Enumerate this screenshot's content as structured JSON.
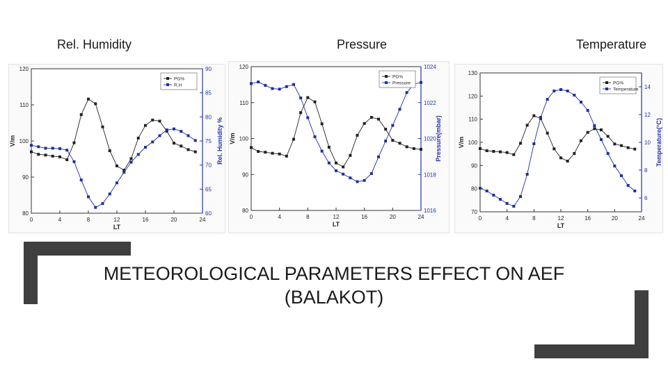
{
  "panel_headings": [
    "Rel. Humidity",
    "Pressure",
    "Temperature"
  ],
  "slide_title_line1": "METEOROLOGICAL PARAMETERS EFFECT ON AEF",
  "slide_title_line2": "(BALAKOT)",
  "colors": {
    "pg_series": "#222222",
    "param_series": "#1f2fa0",
    "param_axis": "#2233aa",
    "bracket": "#3f3f3f"
  },
  "chart_data": [
    {
      "type": "line",
      "xlabel": "LT",
      "ylabel": "V/m",
      "y2label": "Rel. Humidity %",
      "xlim": [
        0,
        24
      ],
      "xticks": [
        0,
        4,
        8,
        12,
        16,
        20,
        24
      ],
      "ylim": [
        80,
        120
      ],
      "yticks": [
        80,
        90,
        100,
        110,
        120
      ],
      "y2lim": [
        60,
        90
      ],
      "y2ticks": [
        60,
        65,
        70,
        75,
        80,
        85,
        90
      ],
      "legend_position": "top-right",
      "x": [
        0,
        1,
        2,
        3,
        4,
        5,
        6,
        7,
        8,
        9,
        10,
        11,
        12,
        13,
        14,
        15,
        16,
        17,
        18,
        19,
        20,
        21,
        22,
        23
      ],
      "series": [
        {
          "name": "PG%",
          "axis": "left",
          "values": [
            97,
            96.3,
            96.1,
            95.8,
            95.6,
            94.8,
            99.5,
            107.3,
            111.6,
            110.3,
            103.9,
            97.3,
            93.1,
            91.9,
            95.1,
            100.8,
            104.3,
            105.8,
            105.5,
            102.7,
            99.4,
            98.6,
            97.6,
            97
          ]
        },
        {
          "name": "R.H",
          "axis": "right",
          "values": [
            74.1,
            73.8,
            73.5,
            73.5,
            73.4,
            73.1,
            70.7,
            66.9,
            63.4,
            61.2,
            62,
            64,
            66.3,
            68.5,
            70.6,
            72.2,
            73.7,
            74.8,
            76.1,
            77.3,
            77.5,
            77,
            76.1,
            75.1
          ]
        }
      ]
    },
    {
      "type": "line",
      "xlabel": "LT",
      "ylabel": "V/m",
      "y2label": "Pressure(mbar)",
      "xlim": [
        0,
        24
      ],
      "xticks": [
        0,
        4,
        8,
        12,
        16,
        20,
        24
      ],
      "ylim": [
        80,
        120
      ],
      "yticks": [
        80,
        90,
        100,
        110,
        120
      ],
      "y2lim": [
        1016,
        1024
      ],
      "y2ticks": [
        1016,
        1018,
        1020,
        1022,
        1024
      ],
      "y2ticklabels": [
        "1016",
        "1018",
        "1020",
        "1022",
        "1024"
      ],
      "legend_position": "top-right",
      "x": [
        0,
        1,
        2,
        3,
        4,
        5,
        6,
        7,
        8,
        9,
        10,
        11,
        12,
        13,
        14,
        15,
        16,
        17,
        18,
        19,
        20,
        21,
        22,
        23,
        24
      ],
      "series": [
        {
          "name": "PG%",
          "axis": "left",
          "values": [
            97.5,
            96.4,
            96.2,
            95.9,
            95.7,
            95.1,
            99.8,
            107.2,
            111.4,
            110.2,
            104.1,
            97.6,
            93.2,
            92.1,
            95.3,
            100.9,
            104.2,
            105.9,
            105.4,
            102.6,
            99.5,
            98.7,
            97.7,
            97.2,
            97
          ]
        },
        {
          "name": "Pressure",
          "axis": "right",
          "values": [
            1023.06,
            1023.15,
            1022.96,
            1022.78,
            1022.75,
            1022.89,
            1023.01,
            1022.26,
            1021.16,
            1020.1,
            1019.3,
            1018.64,
            1018.21,
            1018.02,
            1017.81,
            1017.6,
            1017.67,
            1018.05,
            1018.98,
            1019.86,
            1020.73,
            1021.63,
            1022.56,
            1023.03,
            1023.12
          ]
        }
      ]
    },
    {
      "type": "line",
      "xlabel": "LT",
      "ylabel": "V/m",
      "y2label": "Temperature(°C)",
      "xlim": [
        0,
        24
      ],
      "xticks": [
        0,
        4,
        8,
        12,
        16,
        20,
        24
      ],
      "ylim": [
        70,
        130
      ],
      "yticks": [
        70,
        80,
        90,
        100,
        110,
        120,
        130
      ],
      "y2lim": [
        5,
        15
      ],
      "y2ticks": [
        6,
        8,
        10,
        12,
        14
      ],
      "legend_position": "top-right",
      "x": [
        0,
        1,
        2,
        3,
        4,
        5,
        6,
        7,
        8,
        9,
        10,
        11,
        12,
        13,
        14,
        15,
        16,
        17,
        18,
        19,
        20,
        21,
        22,
        23
      ],
      "series": [
        {
          "name": "PG%",
          "axis": "left",
          "values": [
            97.3,
            96.4,
            96.1,
            95.9,
            95.6,
            94.7,
            99.6,
            107.4,
            111.5,
            110.3,
            104,
            97.2,
            93.3,
            91.9,
            95.2,
            100.7,
            104.3,
            105.9,
            105.4,
            102.6,
            99.3,
            98.6,
            97.7,
            97.1
          ]
        },
        {
          "name": "Temperature",
          "axis": "right",
          "values": [
            6.7,
            6.5,
            6.2,
            5.9,
            5.6,
            5.4,
            6.1,
            7.7,
            9.9,
            11.8,
            13.1,
            13.7,
            13.8,
            13.7,
            13.4,
            12.9,
            12.3,
            11.2,
            10.2,
            9.2,
            8.3,
            7.6,
            6.9,
            6.5
          ]
        }
      ]
    }
  ]
}
